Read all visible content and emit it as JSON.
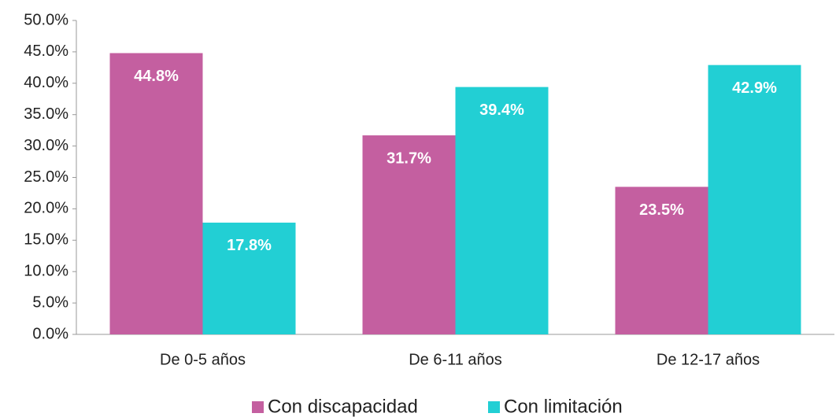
{
  "chart_data": {
    "type": "bar",
    "categories": [
      "De 0-5 años",
      "De 6-11 años",
      "De 12-17 años"
    ],
    "series": [
      {
        "name": "Con discapacidad",
        "color": "#c45fa0",
        "values": [
          44.8,
          31.7,
          23.5
        ],
        "value_labels": [
          "44.8%",
          "31.7%",
          "23.5%"
        ]
      },
      {
        "name": "Con limitación",
        "color": "#22cfd4",
        "values": [
          17.8,
          39.4,
          42.9
        ],
        "value_labels": [
          "17.8%",
          "39.4%",
          "42.9%"
        ]
      }
    ],
    "ylim": [
      0,
      50
    ],
    "yticks": [
      {
        "value": 0,
        "label": "0.0%"
      },
      {
        "value": 5,
        "label": "5.0%"
      },
      {
        "value": 10,
        "label": "10.0%"
      },
      {
        "value": 15,
        "label": "15.0%"
      },
      {
        "value": 20,
        "label": "20.0%"
      },
      {
        "value": 25,
        "label": "25.0%"
      },
      {
        "value": 30,
        "label": "30.0%"
      },
      {
        "value": 35,
        "label": "35.0%"
      },
      {
        "value": 40,
        "label": "40.0%"
      },
      {
        "value": 45,
        "label": "45.0%"
      },
      {
        "value": 50,
        "label": "50.0%"
      }
    ],
    "grid": false,
    "legend": "bottom"
  }
}
